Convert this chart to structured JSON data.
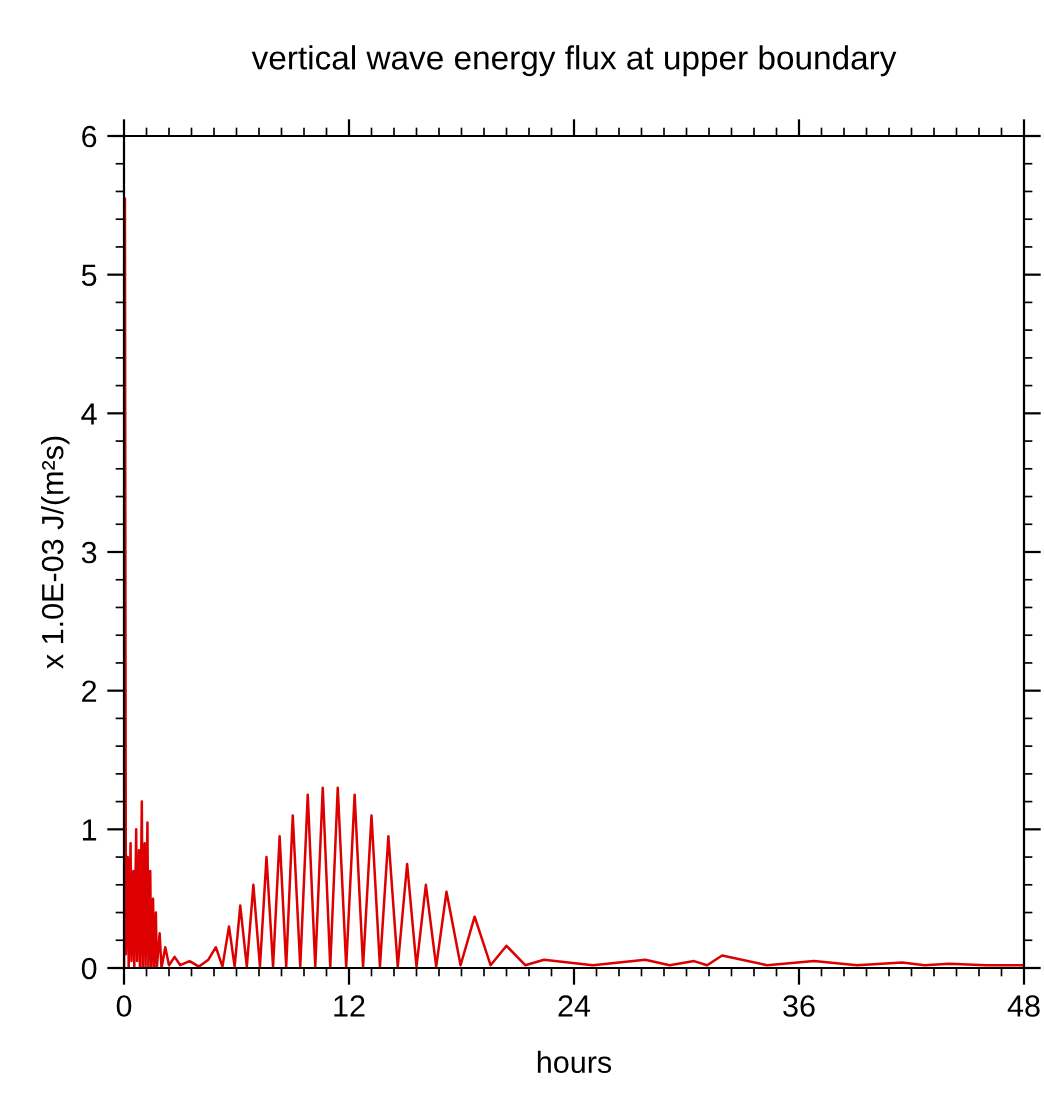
{
  "chart_data": {
    "type": "line",
    "title": "vertical wave energy flux at upper boundary",
    "xlabel": "hours",
    "ylabel": "x 1.0E-03 J/(m²s)",
    "xlim": [
      0,
      48
    ],
    "xticks": [
      0,
      12,
      24,
      36,
      48
    ],
    "ylim": [
      0,
      6
    ],
    "yticks": [
      0,
      1,
      2,
      3,
      4,
      5,
      6
    ],
    "grid": false,
    "legend": false,
    "marker": "none",
    "line_style": "solid",
    "series": [
      {
        "color": "#dd0000",
        "x": [
          0,
          0.05,
          0.1,
          0.2,
          0.25,
          0.35,
          0.4,
          0.5,
          0.55,
          0.65,
          0.7,
          0.8,
          0.85,
          0.95,
          1.0,
          1.1,
          1.15,
          1.25,
          1.3,
          1.4,
          1.45,
          1.55,
          1.6,
          1.7,
          1.75,
          1.9,
          2.0,
          2.2,
          2.4,
          2.7,
          3.0,
          3.5,
          4.0,
          4.5,
          4.9,
          5.25,
          5.6,
          5.9,
          6.2,
          6.55,
          6.9,
          7.25,
          7.6,
          7.95,
          8.3,
          8.65,
          9.0,
          9.4,
          9.8,
          10.2,
          10.6,
          11.0,
          11.4,
          11.85,
          12.3,
          12.75,
          13.2,
          13.65,
          14.1,
          14.6,
          15.1,
          15.6,
          16.1,
          16.65,
          17.2,
          17.95,
          18.7,
          19.55,
          20.4,
          21.4,
          22.4,
          25.0,
          27.8,
          29.1,
          30.4,
          31.1,
          31.9,
          34.3,
          36.8,
          39.1,
          41.5,
          42.7,
          44.0,
          46.0,
          48.0
        ],
        "values": [
          0,
          5.55,
          0.1,
          0.8,
          0,
          0.9,
          0.05,
          0.7,
          0,
          1.0,
          0.05,
          0.85,
          0,
          1.2,
          0,
          0.9,
          0,
          1.05,
          0,
          0.7,
          0,
          0.5,
          0,
          0.4,
          0,
          0.25,
          0,
          0.15,
          0.02,
          0.08,
          0.02,
          0.05,
          0.01,
          0.06,
          0.15,
          0.01,
          0.3,
          0.01,
          0.45,
          0.01,
          0.6,
          0.01,
          0.8,
          0.01,
          0.95,
          0.01,
          1.1,
          0.01,
          1.25,
          0.01,
          1.3,
          0.01,
          1.3,
          0.01,
          1.25,
          0.01,
          1.1,
          0.01,
          0.95,
          0.01,
          0.75,
          0.01,
          0.6,
          0.01,
          0.55,
          0.02,
          0.37,
          0.02,
          0.16,
          0.02,
          0.06,
          0.02,
          0.06,
          0.02,
          0.05,
          0.02,
          0.09,
          0.02,
          0.05,
          0.02,
          0.04,
          0.02,
          0.03,
          0.02,
          0.02
        ]
      }
    ]
  }
}
